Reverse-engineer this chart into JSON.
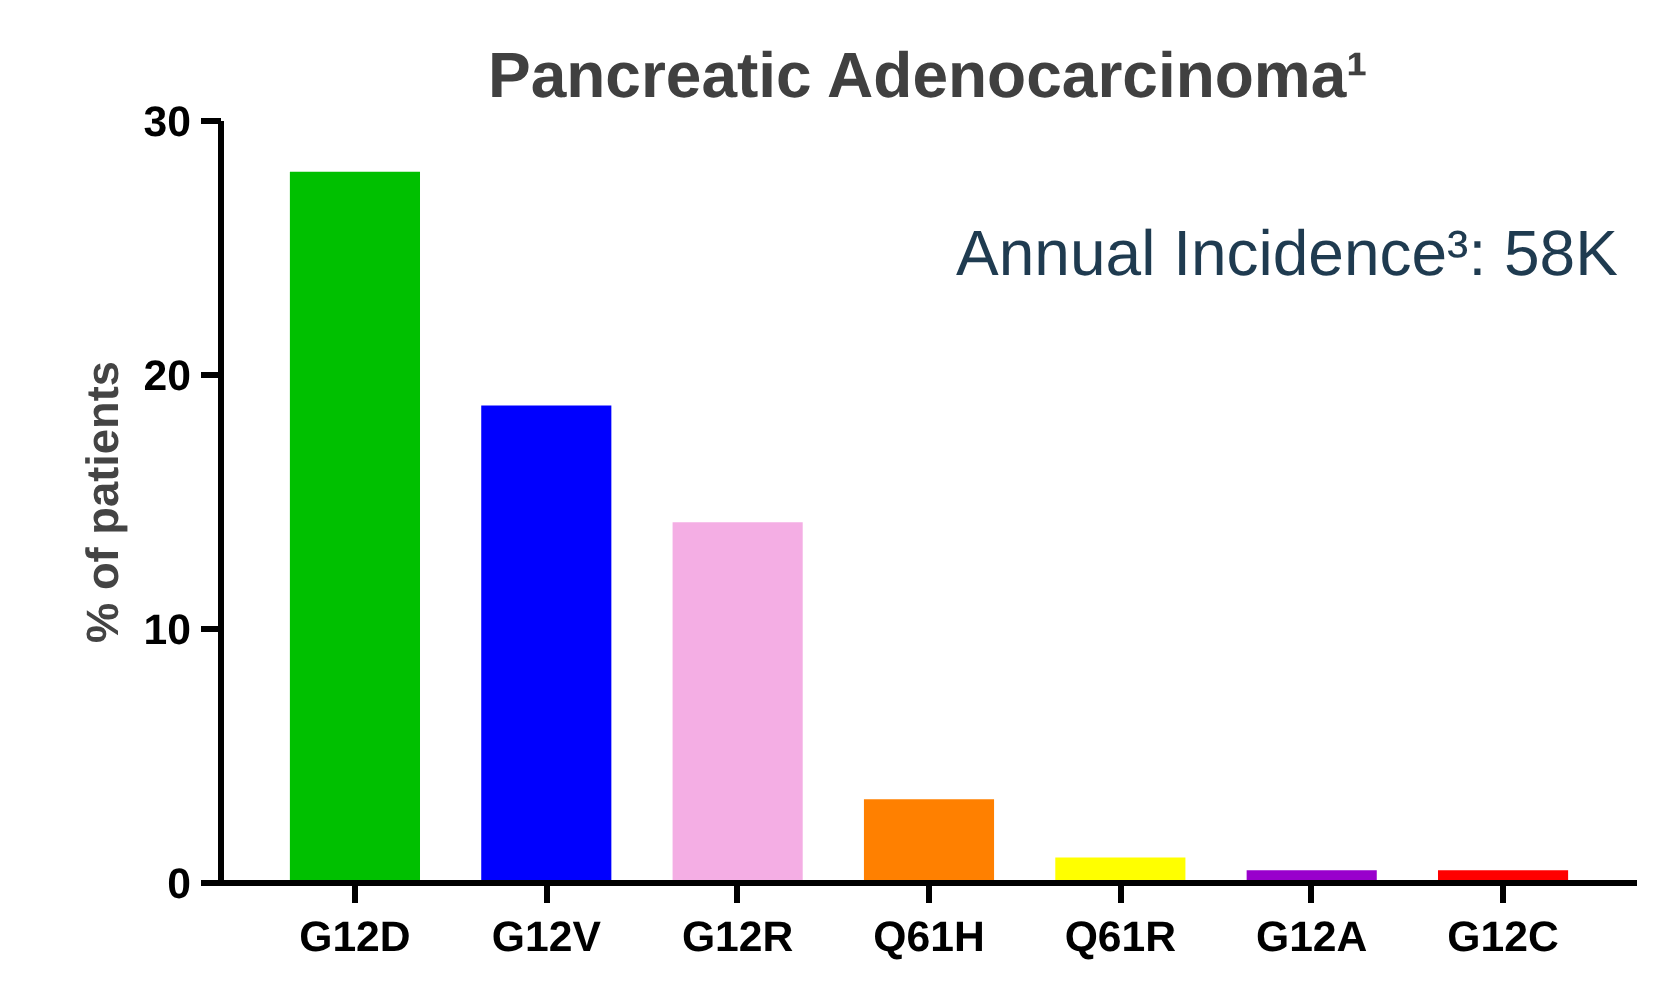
{
  "chart_data": {
    "type": "bar",
    "title": "Pancreatic Adenocarcinoma¹",
    "ylabel": "% of patients",
    "categories": [
      "G12D",
      "G12V",
      "G12R",
      "Q61H",
      "Q61R",
      "G12A",
      "G12C"
    ],
    "values": [
      28.0,
      18.8,
      14.2,
      3.3,
      1.0,
      0.5,
      0.5
    ],
    "colors": [
      "#00c000",
      "#0000ff",
      "#f4aee4",
      "#ff8000",
      "#ffff00",
      "#9900cc",
      "#ff0000"
    ],
    "ylim": [
      0,
      30
    ],
    "yticks": [
      0,
      10,
      20,
      30
    ],
    "grid": false,
    "annotations": [
      "Annual Incidence³: 58K"
    ]
  }
}
